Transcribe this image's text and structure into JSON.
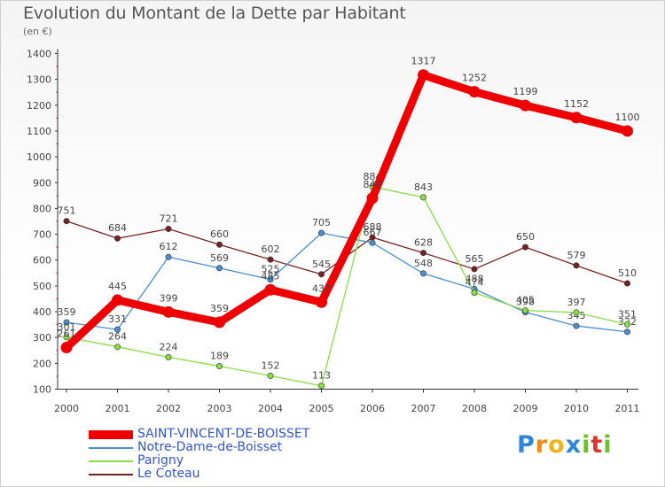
{
  "header": {
    "title": "Evolution du Montant de la Dette par Habitant",
    "subtitle": "(en €)"
  },
  "brand": {
    "text": "Proxiti"
  },
  "chart_data": {
    "type": "line",
    "title": "Evolution du Montant de la Dette par Habitant",
    "subtitle": "(en €)",
    "xlabel": "",
    "ylabel": "",
    "x": [
      "2000",
      "2001",
      "2002",
      "2003",
      "2004",
      "2005",
      "2006",
      "2007",
      "2008",
      "2009",
      "2010",
      "2011"
    ],
    "yticks": [
      100,
      200,
      300,
      400,
      500,
      600,
      700,
      800,
      900,
      1000,
      1100,
      1200,
      1300,
      1400
    ],
    "ylim": [
      100,
      1400
    ],
    "grid": false,
    "legend_position": "bottom-left",
    "series": [
      {
        "name": "SAINT-VINCENT-DE-BOISSET",
        "color": "#ee0000",
        "values": [
          261,
          445,
          399,
          359,
          485,
          437,
          840,
          1317,
          1252,
          1199,
          1152,
          1100
        ],
        "labels": [
          "261",
          "445",
          "399",
          "359",
          "485",
          "437",
          "840",
          "1317",
          "1252",
          "1199",
          "1152",
          "1100"
        ]
      },
      {
        "name": "Notre-Dame-de-Boisset",
        "color": "#4a8fd0",
        "values": [
          359,
          331,
          612,
          569,
          525,
          705,
          667,
          548,
          488,
          398,
          345,
          322
        ],
        "labels": [
          "359",
          "331",
          "612",
          "569",
          "525",
          "705",
          "667",
          "548",
          "488",
          "398",
          "345",
          "322"
        ]
      },
      {
        "name": "Parigny",
        "color": "#88dd44",
        "values": [
          301,
          264,
          224,
          189,
          152,
          113,
          884,
          843,
          474,
          405,
          397,
          351
        ],
        "labels": [
          "301",
          "264",
          "224",
          "189",
          "152",
          "113",
          "884",
          "843",
          "474",
          "405",
          "397",
          "351"
        ]
      },
      {
        "name": "Le Coteau",
        "color": "#772222",
        "values": [
          751,
          684,
          721,
          660,
          602,
          545,
          688,
          628,
          565,
          650,
          579,
          510
        ],
        "labels": [
          "751",
          "684",
          "721",
          "660",
          "602",
          "545",
          "688",
          "628",
          "565",
          "650",
          "579",
          "510"
        ]
      }
    ]
  }
}
